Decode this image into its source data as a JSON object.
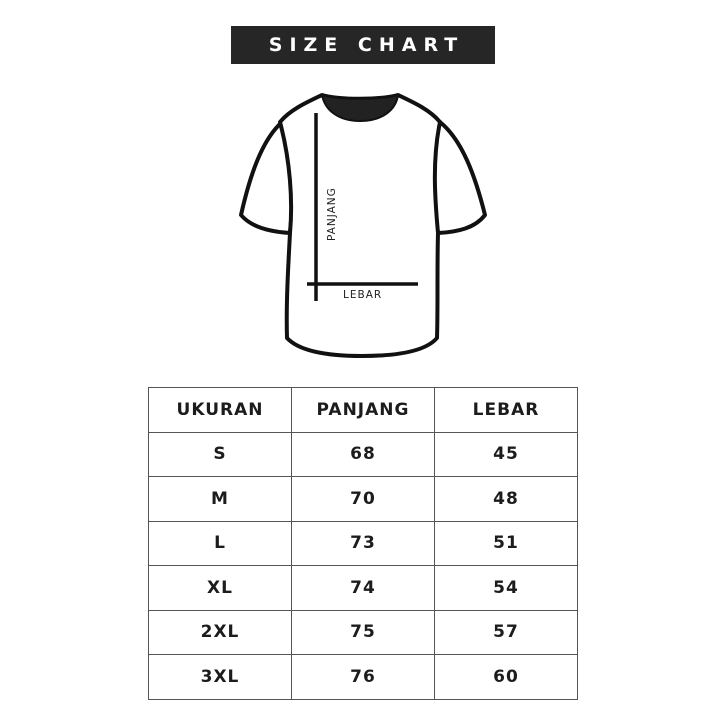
{
  "title": "SIZE CHART",
  "diagram": {
    "length_label": "PANJANG",
    "width_label": "LEBAR"
  },
  "table": {
    "headers": [
      "UKURAN",
      "PANJANG",
      "LEBAR"
    ],
    "rows": [
      [
        "S",
        "68",
        "45"
      ],
      [
        "M",
        "70",
        "48"
      ],
      [
        "L",
        "73",
        "51"
      ],
      [
        "XL",
        "74",
        "54"
      ],
      [
        "2XL",
        "75",
        "57"
      ],
      [
        "3XL",
        "76",
        "60"
      ]
    ]
  }
}
